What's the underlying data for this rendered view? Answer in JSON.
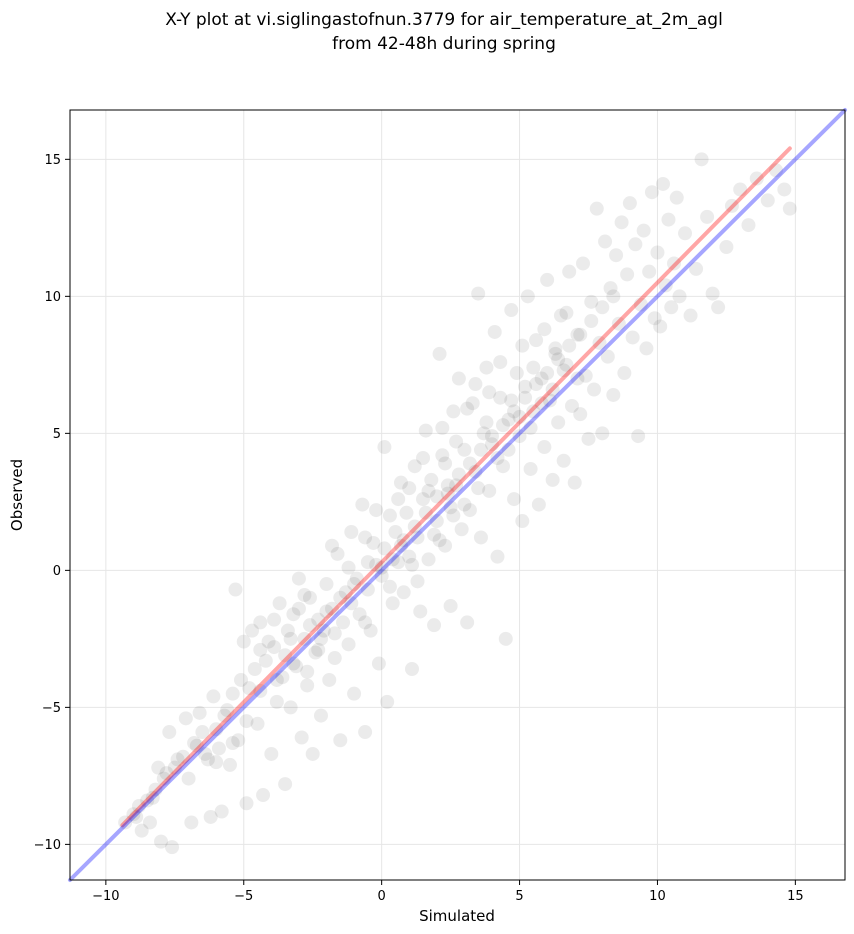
{
  "chart_data": {
    "type": "scatter",
    "title_line1": "X-Y plot at vi.siglingastofnun.3779 for air_temperature_at_2m_agl",
    "title_line2": "from 42-48h during spring",
    "xlabel": "Simulated",
    "ylabel": "Observed",
    "xlim": [
      -11.3,
      16.8
    ],
    "ylim": [
      -11.3,
      16.8
    ],
    "xticks": [
      -10,
      -5,
      0,
      5,
      10,
      15
    ],
    "yticks": [
      -10,
      -5,
      0,
      5,
      10,
      15
    ],
    "xtick_labels": [
      "−10",
      "−5",
      "0",
      "5",
      "10",
      "15"
    ],
    "ytick_labels": [
      "−10",
      "−5",
      "0",
      "5",
      "10",
      "15"
    ],
    "grid": true,
    "point_color": "#000000",
    "point_opacity": 0.08,
    "series": [
      {
        "values": [
          [
            -9.3,
            -9.2
          ],
          [
            -9.0,
            -8.9
          ],
          [
            -8.8,
            -8.6
          ],
          [
            -8.5,
            -8.4
          ],
          [
            -8.7,
            -9.5
          ],
          [
            -8.2,
            -8.0
          ],
          [
            -8.0,
            -9.9
          ],
          [
            -7.8,
            -7.4
          ],
          [
            -8.4,
            -9.2
          ],
          [
            -7.6,
            -10.1
          ],
          [
            -7.5,
            -7.2
          ],
          [
            -7.2,
            -6.8
          ],
          [
            -7.0,
            -7.6
          ],
          [
            -6.9,
            -9.2
          ],
          [
            -6.7,
            -6.4
          ],
          [
            -6.5,
            -5.9
          ],
          [
            -6.3,
            -6.9
          ],
          [
            -6.2,
            -9.0
          ],
          [
            -6.0,
            -5.8
          ],
          [
            -5.9,
            -6.5
          ],
          [
            -5.8,
            -8.8
          ],
          [
            -5.6,
            -5.1
          ],
          [
            -5.5,
            -7.1
          ],
          [
            -5.4,
            -4.5
          ],
          [
            -5.3,
            -0.7
          ],
          [
            -5.2,
            -6.2
          ],
          [
            -5.0,
            -2.6
          ],
          [
            -4.9,
            -8.5
          ],
          [
            -4.8,
            -4.3
          ],
          [
            -4.6,
            -3.6
          ],
          [
            -4.5,
            -5.6
          ],
          [
            -4.4,
            -1.9
          ],
          [
            -4.3,
            -8.2
          ],
          [
            -4.2,
            -3.3
          ],
          [
            -4.0,
            -6.7
          ],
          [
            -3.9,
            -2.8
          ],
          [
            -3.8,
            -4.8
          ],
          [
            -3.7,
            -1.2
          ],
          [
            -3.6,
            -3.9
          ],
          [
            -3.5,
            -7.8
          ],
          [
            -3.4,
            -2.2
          ],
          [
            -3.3,
            -5.0
          ],
          [
            -3.2,
            -1.6
          ],
          [
            -3.1,
            -3.5
          ],
          [
            -3.0,
            -0.3
          ],
          [
            -2.9,
            -6.1
          ],
          [
            -2.8,
            -2.5
          ],
          [
            -2.7,
            -4.2
          ],
          [
            -2.6,
            -1.0
          ],
          [
            -2.5,
            -6.7
          ],
          [
            -2.4,
            -3.0
          ],
          [
            -2.3,
            -1.8
          ],
          [
            -2.2,
            -5.3
          ],
          [
            -2.1,
            -2.2
          ],
          [
            -2.0,
            -0.5
          ],
          [
            -1.9,
            -4.0
          ],
          [
            -1.8,
            -1.4
          ],
          [
            -1.7,
            -3.2
          ],
          [
            -1.6,
            0.6
          ],
          [
            -1.5,
            -6.2
          ],
          [
            -1.4,
            -1.9
          ],
          [
            -1.3,
            -0.8
          ],
          [
            -1.2,
            -2.7
          ],
          [
            -1.1,
            1.4
          ],
          [
            -1.0,
            -4.5
          ],
          [
            -0.9,
            -0.3
          ],
          [
            -0.8,
            -1.6
          ],
          [
            -0.7,
            2.4
          ],
          [
            -0.6,
            -5.9
          ],
          [
            -0.5,
            -0.7
          ],
          [
            -0.4,
            -2.2
          ],
          [
            -0.3,
            1.0
          ],
          [
            -0.2,
            0.2
          ],
          [
            -0.1,
            -3.4
          ],
          [
            0.0,
            -0.2
          ],
          [
            0.1,
            4.5
          ],
          [
            0.1,
            0.8
          ],
          [
            0.2,
            -4.8
          ],
          [
            0.3,
            2.0
          ],
          [
            0.4,
            -1.2
          ],
          [
            0.5,
            1.4
          ],
          [
            0.6,
            0.3
          ],
          [
            0.7,
            3.2
          ],
          [
            0.8,
            -0.8
          ],
          [
            0.9,
            2.1
          ],
          [
            1.0,
            0.5
          ],
          [
            1.1,
            -3.6
          ],
          [
            1.2,
            3.8
          ],
          [
            1.3,
            1.2
          ],
          [
            1.4,
            -1.5
          ],
          [
            1.5,
            2.6
          ],
          [
            1.6,
            5.1
          ],
          [
            1.7,
            0.4
          ],
          [
            1.8,
            3.3
          ],
          [
            1.9,
            -2.0
          ],
          [
            2.0,
            1.8
          ],
          [
            2.1,
            7.9
          ],
          [
            2.2,
            4.2
          ],
          [
            2.3,
            0.9
          ],
          [
            2.4,
            2.8
          ],
          [
            2.5,
            -1.3
          ],
          [
            2.6,
            5.8
          ],
          [
            2.7,
            3.1
          ],
          [
            2.8,
            7.0
          ],
          [
            2.9,
            1.5
          ],
          [
            3.0,
            4.4
          ],
          [
            3.1,
            -1.9
          ],
          [
            3.2,
            2.2
          ],
          [
            3.3,
            6.1
          ],
          [
            3.4,
            3.6
          ],
          [
            3.5,
            10.1
          ],
          [
            3.6,
            1.2
          ],
          [
            3.7,
            5.0
          ],
          [
            3.8,
            7.4
          ],
          [
            3.9,
            2.9
          ],
          [
            4.0,
            4.6
          ],
          [
            4.1,
            8.7
          ],
          [
            4.2,
            0.5
          ],
          [
            4.3,
            6.3
          ],
          [
            4.4,
            3.8
          ],
          [
            4.5,
            -2.5
          ],
          [
            4.6,
            5.5
          ],
          [
            4.7,
            9.5
          ],
          [
            4.8,
            2.6
          ],
          [
            4.9,
            7.2
          ],
          [
            5.0,
            4.9
          ],
          [
            5.1,
            1.8
          ],
          [
            5.2,
            6.7
          ],
          [
            5.3,
            10.0
          ],
          [
            5.4,
            3.7
          ],
          [
            5.5,
            5.8
          ],
          [
            5.6,
            8.4
          ],
          [
            5.7,
            2.4
          ],
          [
            5.8,
            7.0
          ],
          [
            5.9,
            4.5
          ],
          [
            6.0,
            10.6
          ],
          [
            6.1,
            6.2
          ],
          [
            6.2,
            3.3
          ],
          [
            6.3,
            8.1
          ],
          [
            6.4,
            5.4
          ],
          [
            6.5,
            9.3
          ],
          [
            6.6,
            4.0
          ],
          [
            6.7,
            7.5
          ],
          [
            6.8,
            10.9
          ],
          [
            6.9,
            6.0
          ],
          [
            7.0,
            3.2
          ],
          [
            7.1,
            8.6
          ],
          [
            7.2,
            5.7
          ],
          [
            7.3,
            11.2
          ],
          [
            7.4,
            7.1
          ],
          [
            7.5,
            4.8
          ],
          [
            7.6,
            9.8
          ],
          [
            7.7,
            6.6
          ],
          [
            7.8,
            13.2
          ],
          [
            7.9,
            8.3
          ],
          [
            8.0,
            5.0
          ],
          [
            8.1,
            12.0
          ],
          [
            8.2,
            7.8
          ],
          [
            8.3,
            10.3
          ],
          [
            8.4,
            6.4
          ],
          [
            8.5,
            11.5
          ],
          [
            8.6,
            9.0
          ],
          [
            8.7,
            12.7
          ],
          [
            8.8,
            7.2
          ],
          [
            8.9,
            10.8
          ],
          [
            9.0,
            13.4
          ],
          [
            9.1,
            8.5
          ],
          [
            9.2,
            11.9
          ],
          [
            9.3,
            4.9
          ],
          [
            9.4,
            9.7
          ],
          [
            9.5,
            12.4
          ],
          [
            9.6,
            8.1
          ],
          [
            9.7,
            10.9
          ],
          [
            9.8,
            13.8
          ],
          [
            9.9,
            9.2
          ],
          [
            10.0,
            11.6
          ],
          [
            10.1,
            8.9
          ],
          [
            10.2,
            14.1
          ],
          [
            10.3,
            10.4
          ],
          [
            10.4,
            12.8
          ],
          [
            10.5,
            9.6
          ],
          [
            10.6,
            11.2
          ],
          [
            10.7,
            13.6
          ],
          [
            10.8,
            10.0
          ],
          [
            11.0,
            12.3
          ],
          [
            11.2,
            9.3
          ],
          [
            11.4,
            11.0
          ],
          [
            11.6,
            15.0
          ],
          [
            11.8,
            12.9
          ],
          [
            12.0,
            10.1
          ],
          [
            12.2,
            9.6
          ],
          [
            12.5,
            11.8
          ],
          [
            12.7,
            13.3
          ],
          [
            13.0,
            13.9
          ],
          [
            13.3,
            12.6
          ],
          [
            13.6,
            14.3
          ],
          [
            14.0,
            13.5
          ],
          [
            14.3,
            14.6
          ],
          [
            14.6,
            13.9
          ],
          [
            14.8,
            13.2
          ],
          [
            -8.9,
            -9.0
          ],
          [
            -8.3,
            -8.3
          ],
          [
            -7.9,
            -7.6
          ],
          [
            -7.4,
            -6.9
          ],
          [
            -6.8,
            -6.3
          ],
          [
            -6.4,
            -6.7
          ],
          [
            -6.1,
            -4.6
          ],
          [
            -5.7,
            -5.3
          ],
          [
            -5.1,
            -4.0
          ],
          [
            -4.7,
            -2.2
          ],
          [
            -4.1,
            -2.6
          ],
          [
            -3.5,
            -3.1
          ],
          [
            -3.0,
            -1.4
          ],
          [
            -2.6,
            -2.0
          ],
          [
            -2.0,
            -1.5
          ],
          [
            -1.5,
            -1.0
          ],
          [
            -1.0,
            -0.5
          ],
          [
            -0.5,
            0.3
          ],
          [
            0.0,
            0.1
          ],
          [
            0.4,
            0.4
          ],
          [
            0.8,
            1.1
          ],
          [
            1.2,
            1.6
          ],
          [
            1.6,
            2.1
          ],
          [
            2.0,
            2.7
          ],
          [
            2.4,
            3.1
          ],
          [
            2.8,
            3.5
          ],
          [
            3.2,
            3.9
          ],
          [
            3.6,
            4.4
          ],
          [
            4.0,
            4.9
          ],
          [
            4.4,
            5.3
          ],
          [
            4.8,
            5.8
          ],
          [
            5.2,
            6.3
          ],
          [
            5.6,
            6.8
          ],
          [
            6.0,
            7.2
          ],
          [
            6.4,
            7.7
          ],
          [
            6.8,
            8.2
          ],
          [
            7.2,
            8.6
          ],
          [
            7.6,
            9.1
          ],
          [
            8.0,
            9.6
          ],
          [
            8.4,
            10.0
          ],
          [
            1.0,
            3.0
          ],
          [
            1.5,
            4.1
          ],
          [
            2.2,
            5.2
          ],
          [
            2.6,
            2.0
          ],
          [
            3.1,
            5.9
          ],
          [
            3.4,
            6.8
          ],
          [
            3.9,
            6.5
          ],
          [
            4.3,
            7.6
          ],
          [
            4.7,
            6.2
          ],
          [
            5.1,
            8.2
          ],
          [
            5.5,
            7.4
          ],
          [
            5.9,
            8.8
          ],
          [
            6.3,
            7.9
          ],
          [
            6.7,
            9.4
          ],
          [
            7.1,
            7.0
          ],
          [
            0.6,
            2.6
          ],
          [
            1.1,
            0.2
          ],
          [
            1.9,
            1.3
          ],
          [
            2.3,
            3.9
          ],
          [
            2.7,
            4.7
          ],
          [
            3.0,
            2.4
          ],
          [
            3.5,
            3.0
          ],
          [
            3.8,
            5.4
          ],
          [
            4.2,
            4.1
          ],
          [
            4.6,
            4.4
          ],
          [
            5.0,
            5.6
          ],
          [
            5.4,
            5.2
          ],
          [
            5.8,
            6.1
          ],
          [
            6.2,
            6.6
          ],
          [
            6.6,
            7.3
          ],
          [
            -1.8,
            0.9
          ],
          [
            -1.2,
            0.1
          ],
          [
            -0.6,
            1.2
          ],
          [
            -0.2,
            2.2
          ],
          [
            0.3,
            -0.6
          ],
          [
            0.7,
            0.9
          ],
          [
            1.3,
            -0.4
          ],
          [
            1.7,
            2.9
          ],
          [
            2.1,
            1.1
          ],
          [
            2.5,
            2.3
          ],
          [
            -4.4,
            -2.9
          ],
          [
            -3.9,
            -1.8
          ],
          [
            -3.3,
            -2.5
          ],
          [
            -2.8,
            -0.9
          ],
          [
            -2.3,
            -2.9
          ],
          [
            -1.7,
            -2.3
          ],
          [
            -1.1,
            -1.2
          ],
          [
            -0.6,
            -1.9
          ],
          [
            -6.6,
            -5.2
          ],
          [
            -6.0,
            -7.0
          ],
          [
            -5.4,
            -6.3
          ],
          [
            -4.9,
            -5.5
          ],
          [
            -4.4,
            -4.4
          ],
          [
            -3.8,
            -4.0
          ],
          [
            -3.2,
            -3.4
          ],
          [
            -2.7,
            -3.7
          ],
          [
            -2.2,
            -2.5
          ],
          [
            -7.7,
            -5.9
          ],
          [
            -7.1,
            -5.4
          ],
          [
            -8.1,
            -7.2
          ]
        ]
      }
    ],
    "lines": [
      {
        "name": "",
        "color": "#ff0000",
        "opacity": 0.35,
        "width": 4,
        "points": [
          [
            -9.4,
            -9.3
          ],
          [
            14.8,
            15.4
          ]
        ]
      },
      {
        "name": "",
        "color": "#0000ff",
        "opacity": 0.35,
        "width": 4,
        "points": [
          [
            -11.3,
            -11.3
          ],
          [
            16.8,
            16.8
          ]
        ]
      }
    ]
  }
}
